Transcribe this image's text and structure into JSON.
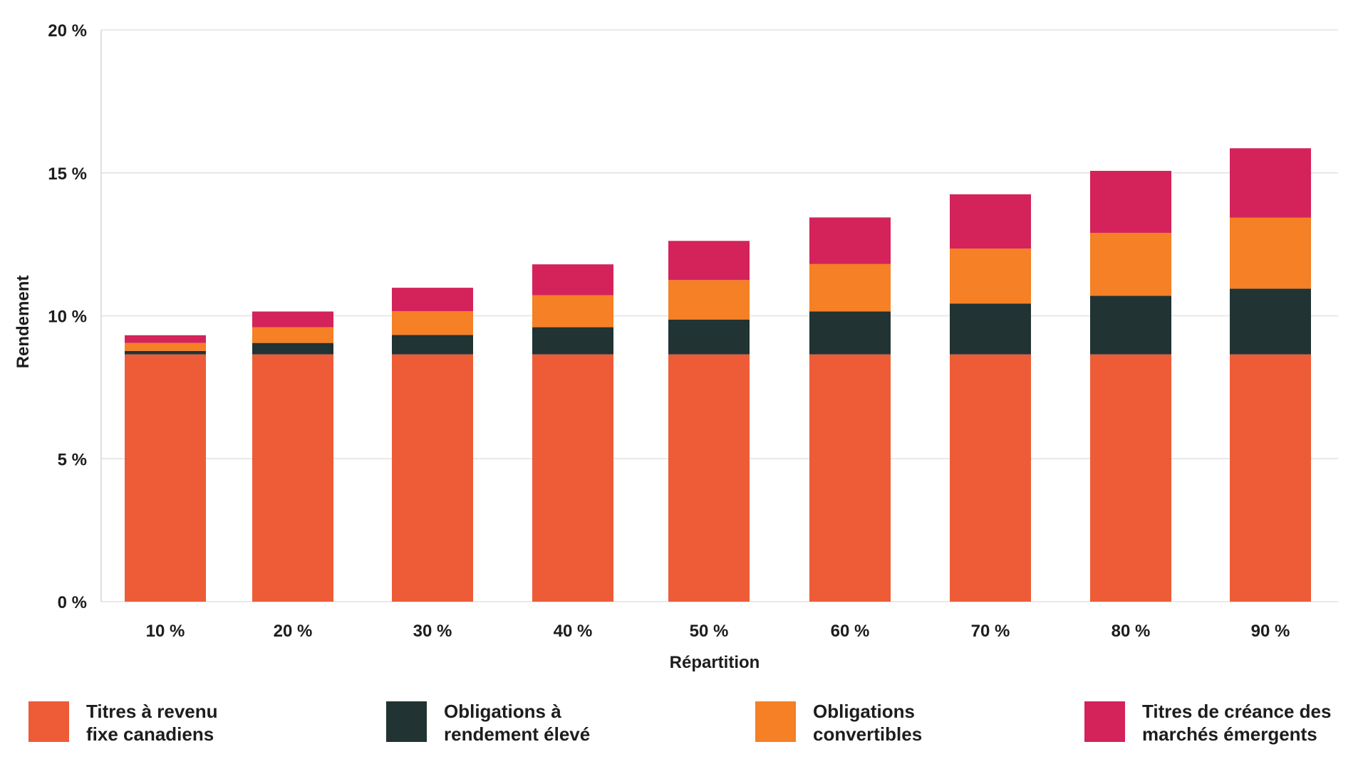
{
  "chart_data": {
    "type": "bar",
    "stacked": true,
    "title": "",
    "xlabel": "Répartition",
    "ylabel": "Rendement",
    "ylim": [
      0,
      20
    ],
    "y_ticks": [
      "0 %",
      "5 %",
      "10 %",
      "15 %",
      "20 %"
    ],
    "y_tick_values": [
      0,
      5,
      10,
      15,
      20
    ],
    "categories": [
      "10 %",
      "20 %",
      "30 %",
      "40 %",
      "50 %",
      "60 %",
      "70 %",
      "80 %",
      "90 %"
    ],
    "grid": true,
    "legend_position": "bottom",
    "series": [
      {
        "name": "Titres à revenu fixe canadiens",
        "color": "#ED5C37",
        "values": [
          8.65,
          8.65,
          8.65,
          8.65,
          8.65,
          8.65,
          8.65,
          8.65,
          8.65
        ]
      },
      {
        "name": "Obligations à rendement élevé",
        "color": "#213333",
        "values": [
          0.12,
          0.4,
          0.68,
          0.95,
          1.22,
          1.5,
          1.78,
          2.05,
          2.3
        ]
      },
      {
        "name": "Obligations convertibles",
        "color": "#F58025",
        "values": [
          0.28,
          0.55,
          0.83,
          1.12,
          1.38,
          1.66,
          1.92,
          2.2,
          2.48
        ]
      },
      {
        "name": "Titres de créance des marchés émergents",
        "color": "#D4235A",
        "values": [
          0.27,
          0.55,
          0.82,
          1.08,
          1.37,
          1.63,
          1.9,
          2.17,
          2.43
        ]
      }
    ]
  },
  "legend": [
    {
      "line1": "Titres à revenu",
      "line2": "fixe canadiens",
      "icon": "orange-red-swatch"
    },
    {
      "line1": "Obligations à",
      "line2": "rendement élevé",
      "icon": "dark-green-swatch"
    },
    {
      "line1": "Obligations",
      "line2": "convertibles",
      "icon": "orange-swatch"
    },
    {
      "line1": "Titres de créance des",
      "line2": "marchés émergents",
      "icon": "crimson-swatch"
    }
  ]
}
